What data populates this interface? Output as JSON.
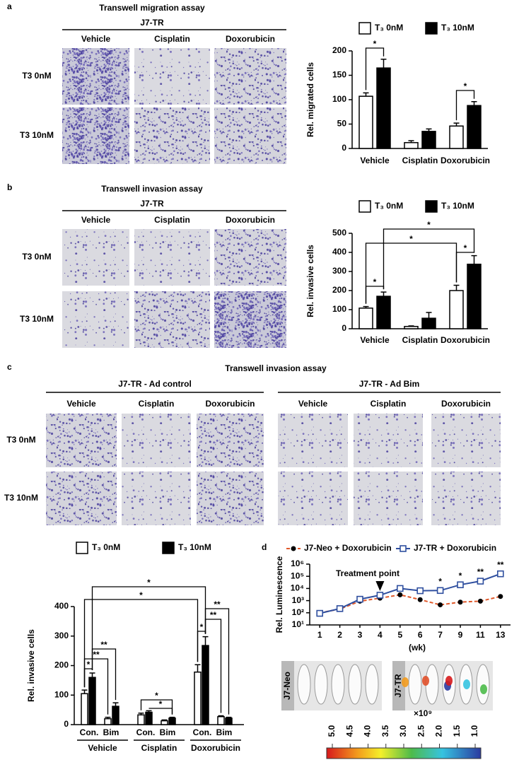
{
  "panels": {
    "a": {
      "label": "a",
      "title": "Transwell migration assay",
      "group": "J7-TR",
      "columns": [
        "Vehicle",
        "Cisplatin",
        "Doxorubicin"
      ],
      "rows": [
        "T3 0nM",
        "T3 10nM"
      ]
    },
    "b": {
      "label": "b",
      "title": "Transwell invasion assay",
      "group": "J7-TR",
      "columns": [
        "Vehicle",
        "Cisplatin",
        "Doxorubicin"
      ],
      "rows": [
        "T3 0nM",
        "T3 10nM"
      ]
    },
    "c": {
      "label": "c",
      "title": "Transwell invasion assay",
      "groups": [
        {
          "name": "J7-TR - Ad control",
          "columns": [
            "Vehicle",
            "Cisplatin",
            "Doxorubicin"
          ]
        },
        {
          "name": "J7-TR - Ad Bim",
          "columns": [
            "Vehicle",
            "Cisplatin",
            "Doxorubicin"
          ]
        }
      ],
      "rows": [
        "T3 0nM",
        "T3 10nM"
      ]
    },
    "d": {
      "label": "d",
      "images": [
        "J7-Neo",
        "J7-TR"
      ],
      "colorbar": {
        "scale": "×10⁹",
        "ticks": [
          {
            "value": 5,
            "label": "5.0"
          },
          {
            "value": 4.5,
            "label": "4.5"
          },
          {
            "value": 4,
            "label": "4.0"
          },
          {
            "value": 3.5,
            "label": "3.5"
          },
          {
            "value": 3,
            "label": "3.0"
          },
          {
            "value": 2.5,
            "label": "2.5"
          },
          {
            "value": 2,
            "label": "2.0"
          },
          {
            "value": 1.5,
            "label": "1.5"
          },
          {
            "value": 1,
            "label": "1.0"
          }
        ]
      }
    }
  },
  "chart_data": [
    {
      "type": "bar",
      "ylabel": "Rel. migrated cells",
      "categories": [
        "Vehicle",
        "Cisplatin",
        "Doxorubicin"
      ],
      "series": [
        {
          "name": "T₃ 0nM",
          "color": "#ffffff",
          "values": [
            107,
            12,
            46
          ],
          "errors": [
            7,
            4,
            6
          ]
        },
        {
          "name": "T₃ 10nM",
          "color": "#000000",
          "values": [
            165,
            35,
            88
          ],
          "errors": [
            18,
            5,
            8
          ]
        }
      ],
      "ylim": [
        0,
        200
      ],
      "yticks": [
        0,
        50,
        100,
        150,
        200
      ],
      "significance": [
        "*",
        "*"
      ]
    },
    {
      "type": "bar",
      "ylabel": "Rel. invasive cells",
      "categories": [
        "Vehicle",
        "Cisplatin",
        "Doxorubicin"
      ],
      "series": [
        {
          "name": "T₃ 0nM",
          "color": "#ffffff",
          "values": [
            108,
            12,
            200
          ],
          "errors": [
            8,
            3,
            28
          ]
        },
        {
          "name": "T₃ 10nM",
          "color": "#000000",
          "values": [
            170,
            55,
            338
          ],
          "errors": [
            22,
            30,
            45
          ]
        }
      ],
      "ylim": [
        0,
        500
      ],
      "yticks": [
        0,
        100,
        200,
        300,
        400,
        500
      ],
      "significance": [
        "*",
        "*",
        "*",
        "*"
      ]
    },
    {
      "type": "bar",
      "ylabel": "Rel. invasive cells",
      "groups": [
        "Vehicle",
        "Cisplatin",
        "Doxorubicin"
      ],
      "categories": [
        "Con.",
        "Bim",
        "Con.",
        "Bim",
        "Con.",
        "Bim"
      ],
      "series": [
        {
          "name": "T₃ 0nM",
          "color": "#ffffff",
          "values": [
            105,
            20,
            33,
            13,
            178,
            27
          ],
          "errors": [
            12,
            5,
            6,
            3,
            25,
            3
          ]
        },
        {
          "name": "T₃ 10nM",
          "color": "#000000",
          "values": [
            160,
            62,
            42,
            22,
            268,
            22
          ],
          "errors": [
            15,
            12,
            5,
            3,
            30,
            3
          ]
        }
      ],
      "ylim": [
        0,
        400
      ],
      "yticks": [
        0,
        100,
        200,
        300,
        400
      ],
      "significance": [
        "*",
        "*",
        "*",
        "**",
        "**",
        "*",
        "*",
        "*",
        "**",
        "**"
      ]
    },
    {
      "type": "line",
      "ylabel": "Rel. Luminescence",
      "xlabel": "(wk)",
      "log_scale": true,
      "categories": [
        "1",
        "2",
        "3",
        "4",
        "5",
        "6",
        "7",
        "9",
        "11",
        "13"
      ],
      "series": [
        {
          "name": "J7-Neo + Doxorubicin",
          "color": "#e0582a",
          "values": [
            100,
            200,
            900,
            1600,
            3000,
            1200,
            450,
            750,
            900,
            2200
          ]
        },
        {
          "name": "J7-TR + Doxorubicin",
          "color": "#2f4f9f",
          "values": [
            90,
            220,
            1300,
            2800,
            10000,
            6500,
            6800,
            20000,
            40000,
            160000
          ]
        }
      ],
      "ylim": [
        10,
        1000000
      ],
      "yticks": [
        {
          "value": 10,
          "label": "10¹"
        },
        {
          "value": 100,
          "label": "10²"
        },
        {
          "value": 1000,
          "label": "10³"
        },
        {
          "value": 10000,
          "label": "10⁴"
        },
        {
          "value": 100000,
          "label": "10⁵"
        },
        {
          "value": 1000000,
          "label": "10⁶"
        }
      ],
      "annotations": [
        "Treatment point"
      ],
      "significance": [
        "*",
        "*",
        "**",
        "**"
      ]
    }
  ]
}
